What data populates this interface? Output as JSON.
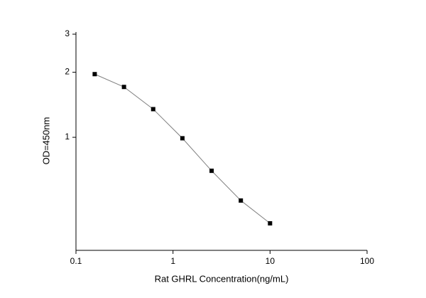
{
  "chart_data": {
    "type": "line",
    "x_label": "Rat GHRL Concentration(ng/mL)",
    "y_label": "OD=450nm",
    "x": [
      0.156,
      0.3125,
      0.625,
      1.25,
      2.5,
      5,
      10
    ],
    "series": [
      {
        "name": "OD",
        "color": "#000000",
        "line_color": "#808080",
        "values": [
          1.96,
          1.71,
          1.35,
          0.99,
          0.7,
          0.51,
          0.4
        ]
      }
    ],
    "xscale": "log",
    "yscale": "log",
    "xlim": [
      0.1,
      100
    ],
    "xticks": [
      0.1,
      1,
      10,
      100
    ],
    "ylim": [
      0.3,
      3.07
    ],
    "yticks": [
      1,
      2,
      3
    ]
  }
}
